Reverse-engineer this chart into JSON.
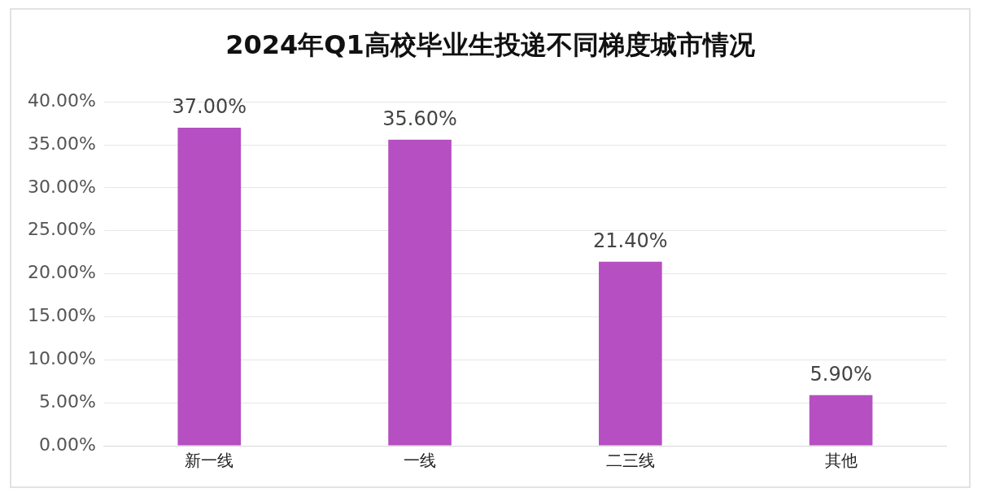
{
  "chart_data": {
    "type": "bar",
    "title": "2024年Q1高校毕业生投递不同梯度城市情况",
    "categories": [
      "新一线",
      "一线",
      "二三线",
      "其他"
    ],
    "values": [
      37.0,
      35.6,
      21.4,
      5.9
    ],
    "value_labels": [
      "37.00%",
      "35.60%",
      "21.40%",
      "5.90%"
    ],
    "color": "#b64fc2",
    "ylim": [
      0,
      40
    ],
    "yticks": [
      {
        "value": 0,
        "label": "0.00%"
      },
      {
        "value": 5,
        "label": "5.00%"
      },
      {
        "value": 10,
        "label": "10.00%"
      },
      {
        "value": 15,
        "label": "15.00%"
      },
      {
        "value": 20,
        "label": "20.00%"
      },
      {
        "value": 25,
        "label": "25.00%"
      },
      {
        "value": 30,
        "label": "30.00%"
      },
      {
        "value": 35,
        "label": "35.00%"
      },
      {
        "value": 40,
        "label": "40.00%"
      }
    ],
    "grid": "y"
  }
}
